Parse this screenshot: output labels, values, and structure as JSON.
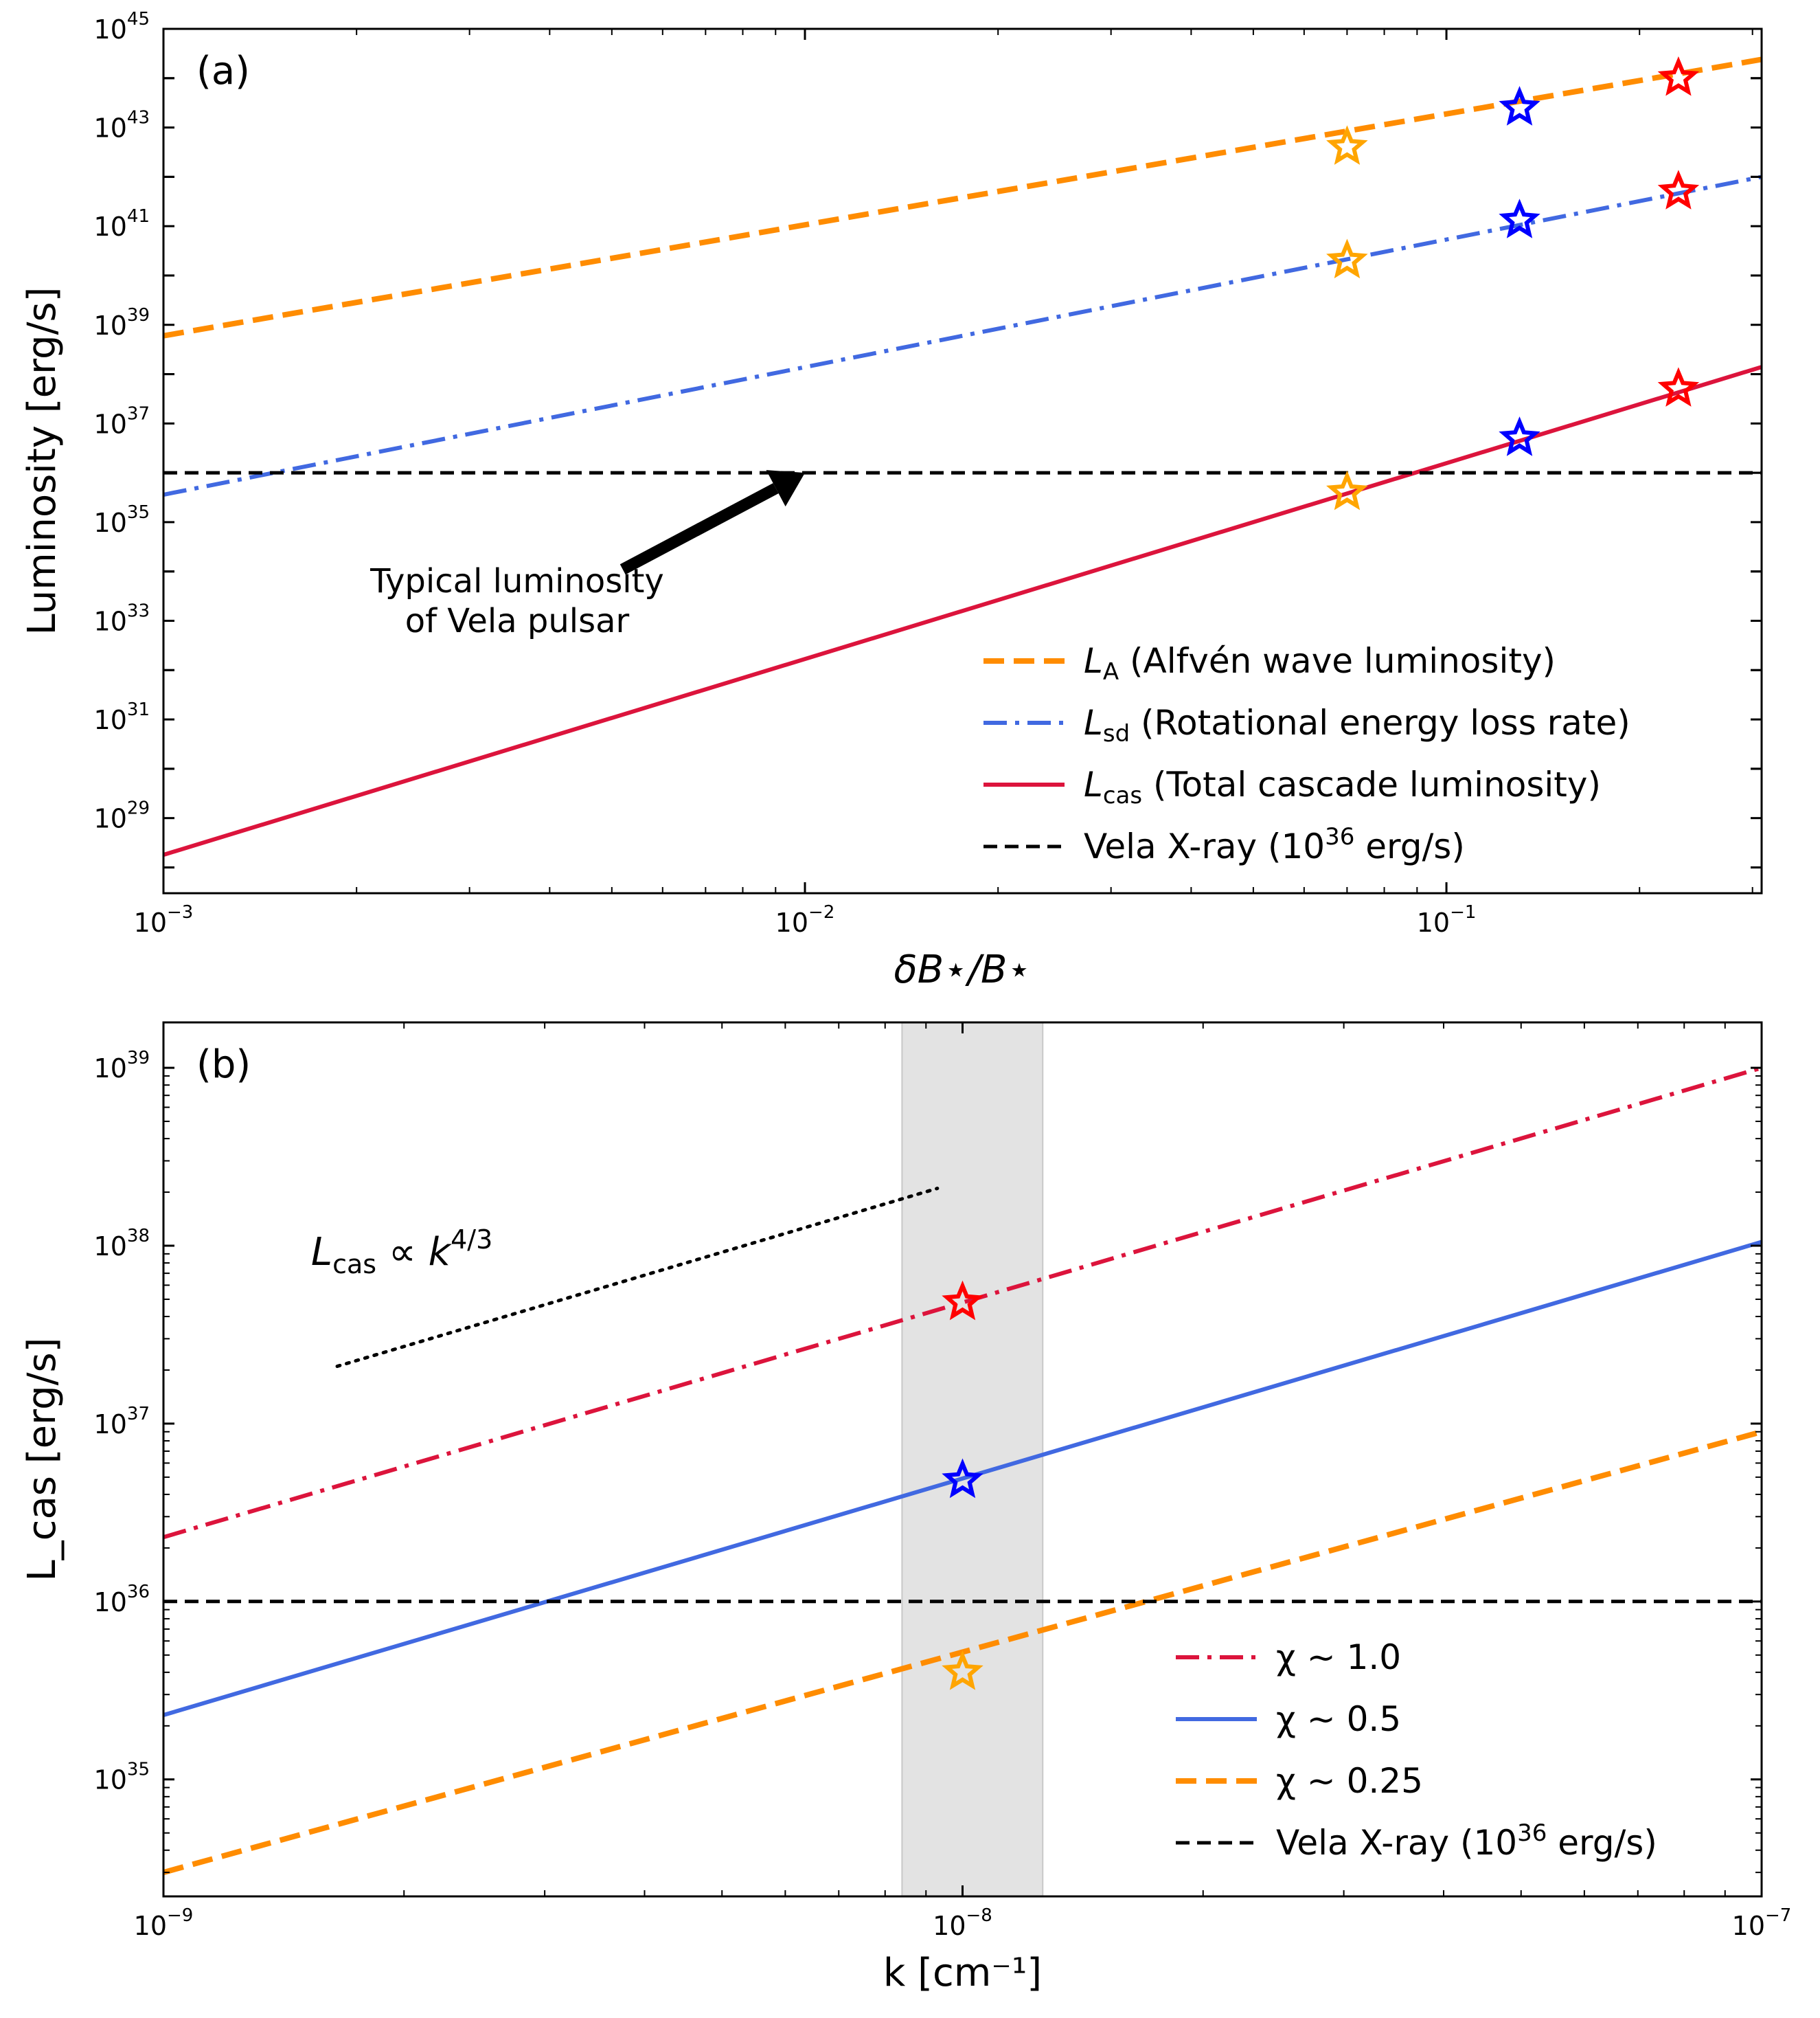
{
  "chart_data": [
    {
      "type": "line",
      "panel_label": "(a)",
      "xlabel": "δB⋆/B⋆",
      "ylabel": "Luminosity [erg/s]",
      "x_scale": "log",
      "y_scale": "log",
      "xlim": [
        0.001,
        0.31
      ],
      "ylim": [
        3e+27,
        1e+45
      ],
      "x_ticks": [
        {
          "value": 0.001,
          "base": "10",
          "exp": "−3"
        },
        {
          "value": 0.01,
          "base": "10",
          "exp": "−2"
        },
        {
          "value": 0.1,
          "base": "10",
          "exp": "−1"
        }
      ],
      "y_ticks": [
        {
          "value": 1e+29,
          "base": "10",
          "exp": "29"
        },
        {
          "value": 1e+31,
          "base": "10",
          "exp": "31"
        },
        {
          "value": 1e+33,
          "base": "10",
          "exp": "33"
        },
        {
          "value": 1e+35,
          "base": "10",
          "exp": "35"
        },
        {
          "value": 1e+37,
          "base": "10",
          "exp": "37"
        },
        {
          "value": 1e+39,
          "base": "10",
          "exp": "39"
        },
        {
          "value": 1e+41,
          "base": "10",
          "exp": "41"
        },
        {
          "value": 1e+43,
          "base": "10",
          "exp": "43"
        },
        {
          "value": 1e+45,
          "base": "10",
          "exp": "45"
        }
      ],
      "series": [
        {
          "name": "L_A (Alfvén wave luminosity)",
          "sym": "L",
          "sub": "A",
          "desc": " (Alfvén wave luminosity)",
          "color": "#ff8c00",
          "style": "dashed",
          "x": [
            0.001,
            0.31
          ],
          "y": [
            6e+38,
            2.4e+44
          ]
        },
        {
          "name": "L_sd (Rotational energy loss rate)",
          "sym": "L",
          "sub": "sd",
          "desc": " (Rotational energy loss rate)",
          "color": "#4169e1",
          "style": "dashdot",
          "x": [
            0.001,
            0.31
          ],
          "y": [
            3.6e+35,
            1e+42
          ]
        },
        {
          "name": "L_cas (Total cascade luminosity)",
          "sym": "L",
          "sub": "cas",
          "desc": " (Total cascade luminosity)",
          "color": "#dc143c",
          "style": "solid",
          "x": [
            0.001,
            0.31
          ],
          "y": [
            1.8e+28,
            1.4e+38
          ]
        },
        {
          "name": "Vela X-ray (10^36 erg/s)",
          "sym": "",
          "sub": "",
          "desc": "Vela X-ray (10",
          "desc_sup": "36",
          "desc_tail": " erg/s)",
          "color": "#000000",
          "style": "dashed-thin",
          "x": [
            0.001,
            0.31
          ],
          "y": [
            1e+36,
            1e+36
          ]
        }
      ],
      "markers": [
        {
          "x": 0.07,
          "y": 4e+42,
          "color": "#ffa500"
        },
        {
          "x": 0.07,
          "y": 2e+40,
          "color": "#ffa500"
        },
        {
          "x": 0.07,
          "y": 4e+35,
          "color": "#ffa500"
        },
        {
          "x": 0.13,
          "y": 2.5e+43,
          "color": "#0000ff"
        },
        {
          "x": 0.13,
          "y": 1.3e+41,
          "color": "#0000ff"
        },
        {
          "x": 0.13,
          "y": 5e+36,
          "color": "#0000ff"
        },
        {
          "x": 0.23,
          "y": 1e+44,
          "color": "#ff0000"
        },
        {
          "x": 0.23,
          "y": 5e+41,
          "color": "#ff0000"
        },
        {
          "x": 0.23,
          "y": 5e+37,
          "color": "#ff0000"
        }
      ],
      "annotation": {
        "lines": [
          "Typical luminosity",
          "of Vela pulsar"
        ],
        "arrow_to": [
          0.01,
          1e+36
        ],
        "arrow_from": [
          0.0052,
          1.1e+34
        ]
      },
      "legend_position": "lower right"
    },
    {
      "type": "line",
      "panel_label": "(b)",
      "xlabel": "k [cm⁻¹]",
      "ylabel": "L_cas [erg/s]",
      "x_scale": "log",
      "y_scale": "log",
      "xlim": [
        1e-09,
        1e-07
      ],
      "ylim": [
        2.2e+34,
        1.8e+39
      ],
      "x_ticks": [
        {
          "value": 1e-09,
          "base": "10",
          "exp": "−9"
        },
        {
          "value": 1e-08,
          "base": "10",
          "exp": "−8"
        },
        {
          "value": 1e-07,
          "base": "10",
          "exp": "−7"
        }
      ],
      "y_ticks": [
        {
          "value": 1e+35,
          "base": "10",
          "exp": "35"
        },
        {
          "value": 1e+36,
          "base": "10",
          "exp": "36"
        },
        {
          "value": 1e+37,
          "base": "10",
          "exp": "37"
        },
        {
          "value": 1e+38,
          "base": "10",
          "exp": "38"
        },
        {
          "value": 1e+39,
          "base": "10",
          "exp": "39"
        }
      ],
      "shaded_region": {
        "x": [
          8.4e-09,
          1.26e-08
        ],
        "color": "#e3e3e3"
      },
      "series": [
        {
          "name": "χ ~ 1.0",
          "label": "χ ∼ 1.0",
          "color": "#dc143c",
          "style": "dashdot",
          "x": [
            1e-09,
            1e-07
          ],
          "y": [
            2.3e+36,
            1e+39
          ]
        },
        {
          "name": "χ ~ 0.5",
          "label": "χ ∼ 0.5",
          "color": "#4169e1",
          "style": "solid",
          "x": [
            1e-09,
            1e-07
          ],
          "y": [
            2.3e+35,
            1.05e+38
          ]
        },
        {
          "name": "χ ~ 0.25",
          "label": "χ ∼ 0.25",
          "color": "#ff8c00",
          "style": "dashed",
          "x": [
            1e-09,
            1e-07
          ],
          "y": [
            3e+34,
            9e+36
          ]
        },
        {
          "name": "Vela X-ray (10^36 erg/s)",
          "label": "Vela X-ray (10",
          "label_sup": "36",
          "label_tail": " erg/s)",
          "color": "#000000",
          "style": "dashed-thin",
          "x": [
            1e-09,
            1e-07
          ],
          "y": [
            1e+36,
            1e+36
          ]
        }
      ],
      "reference_line": {
        "name": "L_cas ∝ k^4/3",
        "sym": "L",
        "sub": "cas",
        "mid": " ∝ ",
        "k": "k",
        "exp": "4/3",
        "x": [
          1.65e-09,
          9.3e-09
        ],
        "y": [
          2.1e+37,
          2.1e+38
        ],
        "label_at": [
          1.5e-09,
          1e+38
        ]
      },
      "markers": [
        {
          "x": 1e-08,
          "y": 4.8e+37,
          "color": "#ff0000"
        },
        {
          "x": 1e-08,
          "y": 4.8e+36,
          "color": "#0000ff"
        },
        {
          "x": 1e-08,
          "y": 4e+35,
          "color": "#ffa500"
        }
      ],
      "legend_position": "lower right"
    }
  ]
}
